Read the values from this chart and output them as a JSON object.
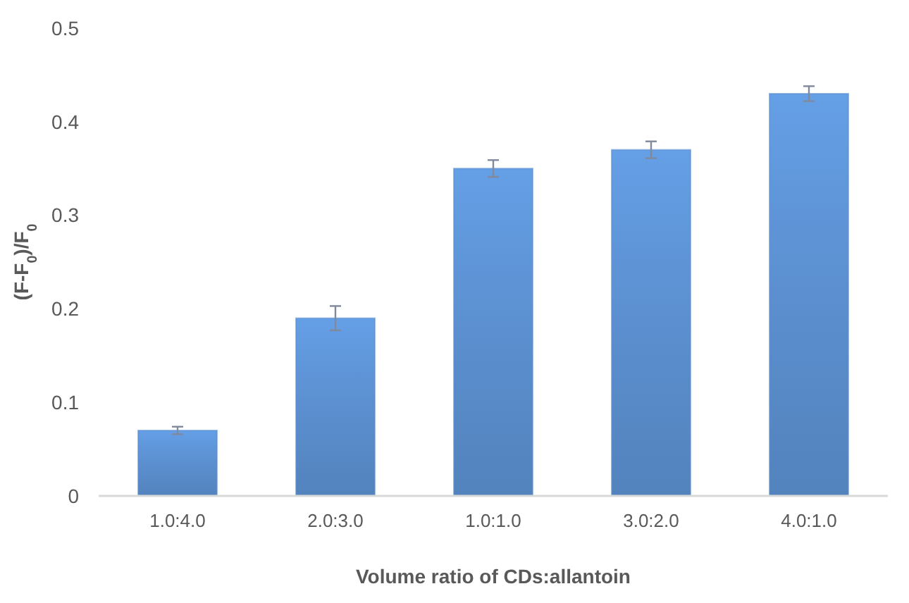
{
  "chart_data": {
    "type": "bar",
    "xlabel": "Volume ratio of CDs:allantoin",
    "ylabel": "(F-F$_{0}$)/F$_{0}$",
    "categories": [
      "1.0:4.0",
      "2.0:3.0",
      "1.0:1.0",
      "3.0:2.0",
      "4.0:1.0"
    ],
    "values": [
      0.07,
      0.19,
      0.35,
      0.37,
      0.43
    ],
    "errors": [
      0.004,
      0.013,
      0.009,
      0.009,
      0.008
    ],
    "color": "#5b8fcf",
    "ylim": [
      0,
      0.5
    ],
    "yticks": [
      0,
      0.1,
      0.2,
      0.3,
      0.4,
      0.5
    ],
    "grid": false
  }
}
